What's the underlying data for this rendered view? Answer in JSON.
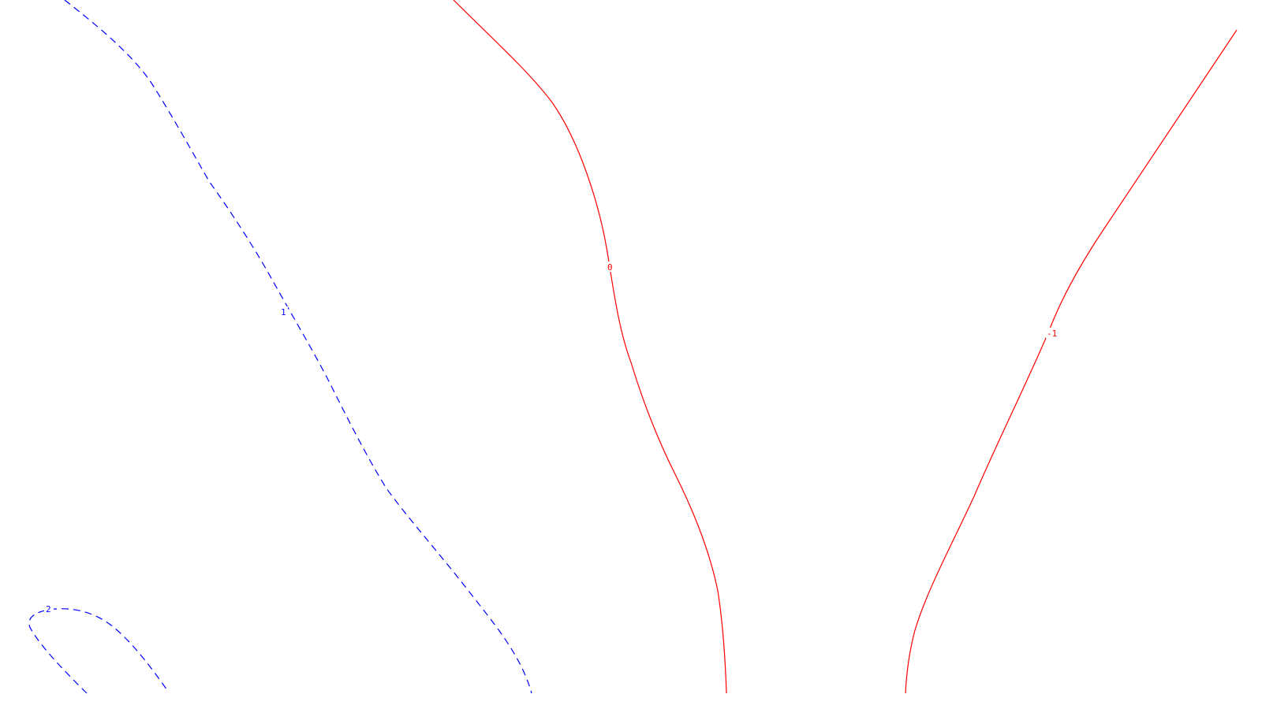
{
  "background": "#ffffff",
  "contours": [
    {
      "id": "contour-1",
      "level": 1,
      "label": "1",
      "color": "#0000ff",
      "style": "dashed"
    },
    {
      "id": "contour-2",
      "level": 2,
      "label": "2",
      "color": "#0000ff",
      "style": "dashed"
    },
    {
      "id": "contour-0",
      "level": 0,
      "label": "0",
      "color": "#ff0000",
      "style": "solid"
    },
    {
      "id": "contour-neg1",
      "level": -1,
      "label": "-1",
      "color": "#ff0000",
      "style": "solid"
    }
  ]
}
